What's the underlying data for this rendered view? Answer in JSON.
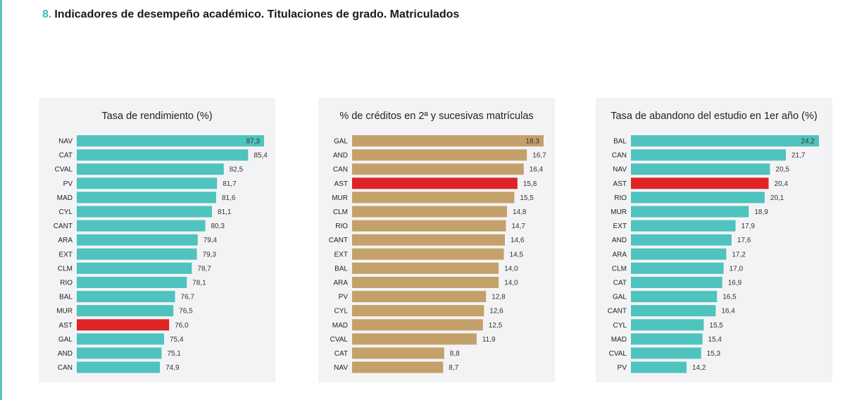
{
  "header": {
    "number": "8.",
    "title": "Indicadores de desempeño académico. Titulaciones de grado. Matriculados"
  },
  "colors": {
    "accent": "#3dbdb3",
    "teal_bar": "#4fc3bd",
    "gold_bar": "#c4a06a",
    "highlight_bar": "#de2424",
    "panel_bg": "#f3f3f5"
  },
  "chart_data": [
    {
      "type": "bar",
      "orientation": "horizontal",
      "title": "Tasa de rendimiento (%)",
      "xlabel": "",
      "ylabel": "",
      "grid": false,
      "highlight": "AST",
      "base_color": "teal",
      "xlim": [
        65,
        87.3
      ],
      "categories": [
        "NAV",
        "CAT",
        "CVAL",
        "PV",
        "MAD",
        "CYL",
        "CANT",
        "ARA",
        "EXT",
        "CLM",
        "RIO",
        "BAL",
        "MUR",
        "AST",
        "GAL",
        "AND",
        "CAN"
      ],
      "values": [
        87.3,
        85.4,
        82.5,
        81.7,
        81.6,
        81.1,
        80.3,
        79.4,
        79.3,
        78.7,
        78.1,
        76.7,
        76.5,
        76.0,
        75.4,
        75.1,
        74.9
      ],
      "labels": [
        "87,3",
        "85,4",
        "82,5",
        "81,7",
        "81,6",
        "81,1",
        "80,3",
        "79,4",
        "79,3",
        "78,7",
        "78,1",
        "76,7",
        "76,5",
        "76,0",
        "75,4",
        "75,1",
        "74,9"
      ]
    },
    {
      "type": "bar",
      "orientation": "horizontal",
      "title": "% de créditos en 2ª y sucesivas matrículas",
      "xlabel": "",
      "ylabel": "",
      "grid": false,
      "highlight": "AST",
      "base_color": "gold",
      "xlim": [
        0,
        18.3
      ],
      "categories": [
        "GAL",
        "AND",
        "CAN",
        "AST",
        "MUR",
        "CLM",
        "RIO",
        "CANT",
        "EXT",
        "BAL",
        "ARA",
        "PV",
        "CYL",
        "MAD",
        "CVAL",
        "CAT",
        "NAV"
      ],
      "values": [
        18.3,
        16.7,
        16.4,
        15.8,
        15.5,
        14.8,
        14.7,
        14.6,
        14.5,
        14.0,
        14.0,
        12.8,
        12.6,
        12.5,
        11.9,
        8.8,
        8.7
      ],
      "labels": [
        "18,3",
        "16,7",
        "16,4",
        "15,8",
        "15,5",
        "14,8",
        "14,7",
        "14,6",
        "14,5",
        "14,0",
        "14,0",
        "12,8",
        "12,6",
        "12,5",
        "11,9",
        "8,8",
        "8,7"
      ]
    },
    {
      "type": "bar",
      "orientation": "horizontal",
      "title": "Tasa de abandono del estudio en 1er año (%)",
      "xlabel": "",
      "ylabel": "",
      "grid": false,
      "highlight": "AST",
      "base_color": "teal",
      "xlim": [
        10,
        24.2
      ],
      "categories": [
        "BAL",
        "CAN",
        "NAV",
        "AST",
        "RIO",
        "MUR",
        "EXT",
        "AND",
        "ARA",
        "CLM",
        "CAT",
        "GAL",
        "CANT",
        "CYL",
        "MAD",
        "CVAL",
        "PV"
      ],
      "values": [
        24.2,
        21.7,
        20.5,
        20.4,
        20.1,
        18.9,
        17.9,
        17.6,
        17.2,
        17.0,
        16.9,
        16.5,
        16.4,
        15.5,
        15.4,
        15.3,
        14.2
      ],
      "labels": [
        "24,2",
        "21,7",
        "20,5",
        "20,4",
        "20,1",
        "18,9",
        "17,9",
        "17,6",
        "17,2",
        "17,0",
        "16,9",
        "16,5",
        "16,4",
        "15,5",
        "15,4",
        "15,3",
        "14,2"
      ]
    }
  ]
}
